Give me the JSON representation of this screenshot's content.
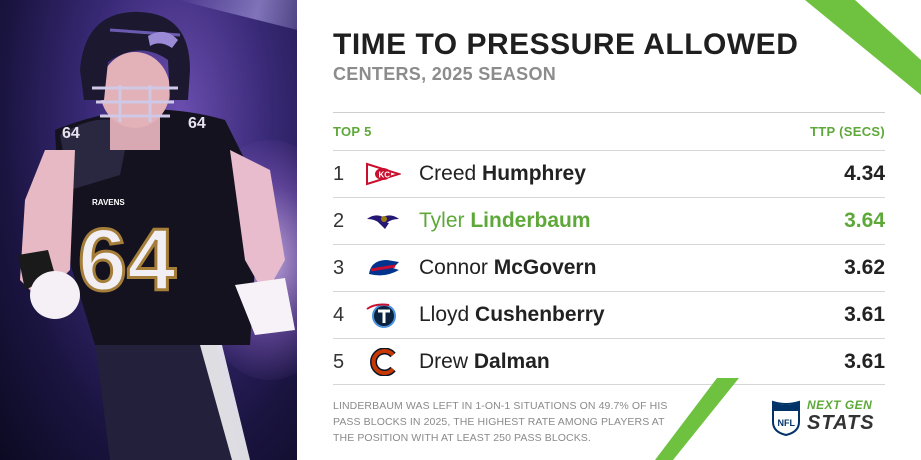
{
  "header": {
    "title": "TIME TO PRESSURE ALLOWED",
    "subtitle": "CENTERS, 2025 SEASON"
  },
  "table": {
    "left_header": "TOP 5",
    "right_header": "TTP (SECS)",
    "rows": [
      {
        "rank": "1",
        "team_logo": "chiefs-logo",
        "first": "Creed",
        "last": "Humphrey",
        "value": "4.34",
        "highlight": false
      },
      {
        "rank": "2",
        "team_logo": "ravens-logo",
        "first": "Tyler",
        "last": "Linderbaum",
        "value": "3.64",
        "highlight": true
      },
      {
        "rank": "3",
        "team_logo": "bills-logo",
        "first": "Connor",
        "last": "McGovern",
        "value": "3.62",
        "highlight": false
      },
      {
        "rank": "4",
        "team_logo": "titans-logo",
        "first": "Lloyd",
        "last": "Cushenberry",
        "value": "3.61",
        "highlight": false
      },
      {
        "rank": "5",
        "team_logo": "bears-logo",
        "first": "Drew",
        "last": "Dalman",
        "value": "3.61",
        "highlight": false
      }
    ]
  },
  "footnote": "LINDERBAUM WAS LEFT IN 1-ON-1 SITUATIONS ON 49.7% OF HIS PASS BLOCKS IN 2025, THE HIGHEST RATE AMONG PLAYERS AT THE POSITION WITH AT LEAST 250 PASS BLOCKS.",
  "photo": {
    "jersey_number": "64",
    "chest_text": "RAVENS"
  },
  "brand": {
    "line1": "NEXT GEN",
    "line2": "STATS",
    "shield": "NFL"
  },
  "colors": {
    "accent": "#5ea83a",
    "title": "#1f1f1f",
    "subtitle": "#8c8c8c",
    "panel": "#2a1f5c"
  }
}
